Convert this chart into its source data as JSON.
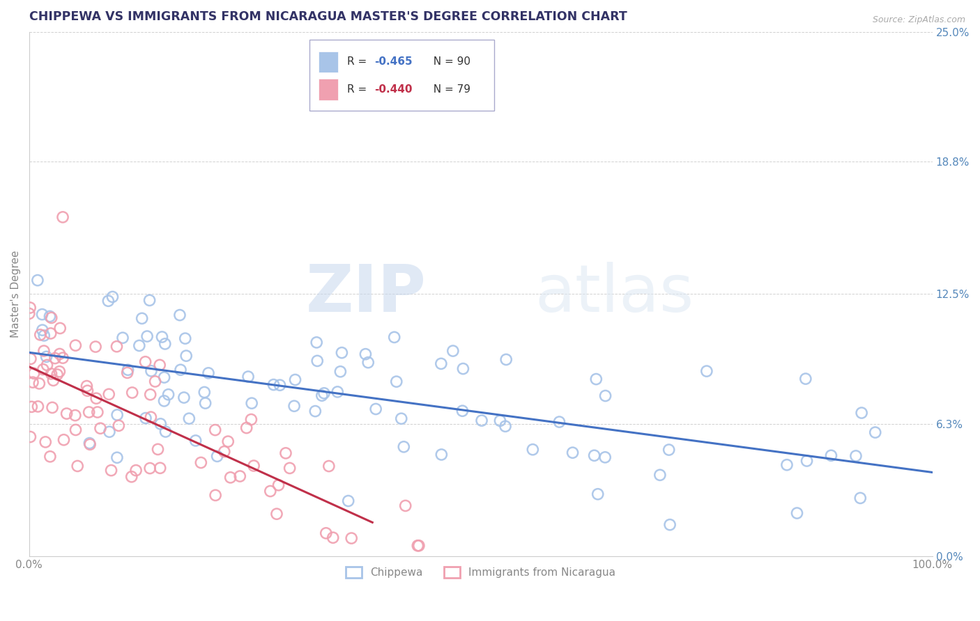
{
  "title": "CHIPPEWA VS IMMIGRANTS FROM NICARAGUA MASTER'S DEGREE CORRELATION CHART",
  "source_text": "Source: ZipAtlas.com",
  "ylabel": "Master's Degree",
  "series1_label": "Chippewa",
  "series2_label": "Immigrants from Nicaragua",
  "series1_color": "#a8c4e8",
  "series2_color": "#f0a0b0",
  "series1_line_color": "#4472c4",
  "series2_line_color": "#c0304a",
  "legend_R1": "R = ",
  "legend_R1_val": "-0.465",
  "legend_N1": "N = 90",
  "legend_R2": "R = ",
  "legend_R2_val": "-0.440",
  "legend_N2": "N = 79",
  "watermark_zip": "ZIP",
  "watermark_atlas": "atlas",
  "xlim": [
    0.0,
    1.0
  ],
  "ylim": [
    0.0,
    0.25
  ],
  "xtick_positions": [
    0.0,
    1.0
  ],
  "xtick_labels": [
    "0.0%",
    "100.0%"
  ],
  "ytick_values": [
    0.0,
    0.063,
    0.125,
    0.188,
    0.25
  ],
  "ytick_labels": [
    "0.0%",
    "6.3%",
    "12.5%",
    "18.8%",
    "25.0%"
  ],
  "background_color": "#ffffff",
  "title_color": "#333366",
  "title_fontsize": 12.5,
  "grid_color": "#cccccc",
  "tick_label_color_right": "#5588bb",
  "tick_label_color_left": "#888888",
  "source_color": "#aaaaaa"
}
